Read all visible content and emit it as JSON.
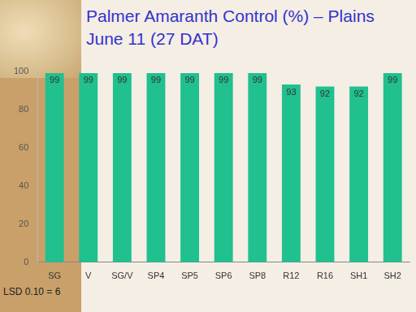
{
  "chart_data": {
    "type": "bar",
    "title": "Palmer Amaranth Control (%) – Plains",
    "subtitle": "June 11 (27 DAT)",
    "annotations": [
      "LSD 0.10 = 6"
    ],
    "categories": [
      "SG",
      "V",
      "SG/V",
      "SP4",
      "SP5",
      "SP6",
      "SP8",
      "R12",
      "R16",
      "SH1",
      "SH2"
    ],
    "values": [
      99,
      99,
      99,
      99,
      99,
      99,
      99,
      93,
      92,
      92,
      99
    ],
    "color": "#20c08f",
    "ylim": [
      0,
      100
    ],
    "yticks": [
      0,
      20,
      40,
      60,
      80,
      100
    ],
    "grid": false,
    "data_labels": true
  }
}
